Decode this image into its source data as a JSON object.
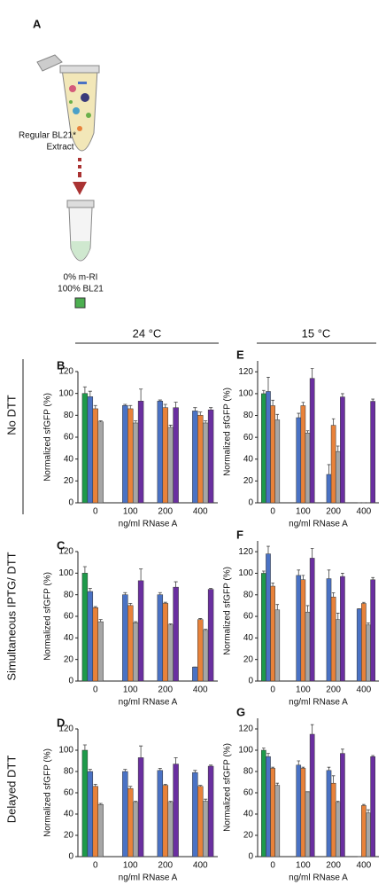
{
  "panel_a": {
    "label": "A",
    "extract_label": [
      "Regular BL21*",
      "Extract"
    ],
    "composition": [
      "0% m-RI",
      "100% BL21"
    ]
  },
  "column_headers": [
    "24 °C",
    "15 °C"
  ],
  "row_labels": [
    "No DTT",
    "Simultaneous IPTG/ DTT",
    "Delayed DTT"
  ],
  "chart_data": [
    {
      "type": "bar",
      "panel": "B",
      "y_label": "Normalized sfGFP (%)",
      "x_label": "ng/ml RNase A",
      "categories": [
        "0",
        "100",
        "200",
        "400"
      ],
      "ylim": [
        0,
        120
      ],
      "yticks": [
        0,
        20,
        40,
        60,
        80,
        100,
        120
      ],
      "series": [
        {
          "color": "#1e9a4a",
          "values": [
            100,
            null,
            null,
            null
          ],
          "errors": [
            6,
            null,
            null,
            null
          ]
        },
        {
          "color": "#4a72c4",
          "values": [
            97,
            89,
            93,
            84
          ],
          "errors": [
            5,
            1,
            1,
            3
          ]
        },
        {
          "color": "#e8823a",
          "values": [
            86,
            86,
            87,
            80
          ],
          "errors": [
            3,
            3,
            3,
            3
          ]
        },
        {
          "color": "#a6a6a6",
          "values": [
            74,
            73,
            69,
            73
          ],
          "errors": [
            1,
            2,
            2,
            2
          ]
        },
        {
          "color": "#6a2fa0",
          "values": [
            null,
            93,
            87,
            85
          ],
          "errors": [
            null,
            11,
            5,
            2
          ]
        }
      ]
    },
    {
      "type": "bar",
      "panel": "C",
      "y_label": "Normalized sfGFP (%)",
      "x_label": "ng/ml RNase A",
      "categories": [
        "0",
        "100",
        "200",
        "400"
      ],
      "ylim": [
        0,
        120
      ],
      "yticks": [
        0,
        20,
        40,
        60,
        80,
        100,
        120
      ],
      "series": [
        {
          "color": "#1e9a4a",
          "values": [
            100,
            null,
            null,
            null
          ],
          "errors": [
            6,
            null,
            null,
            null
          ]
        },
        {
          "color": "#4a72c4",
          "values": [
            83,
            80,
            80,
            13
          ],
          "errors": [
            3,
            2,
            2,
            0
          ]
        },
        {
          "color": "#e8823a",
          "values": [
            68,
            70,
            72,
            57
          ],
          "errors": [
            1,
            2,
            1,
            1
          ]
        },
        {
          "color": "#a6a6a6",
          "values": [
            55,
            54,
            52,
            47
          ],
          "errors": [
            2,
            1,
            1,
            1
          ]
        },
        {
          "color": "#6a2fa0",
          "values": [
            null,
            93,
            87,
            85
          ],
          "errors": [
            null,
            11,
            5,
            1
          ]
        }
      ]
    },
    {
      "type": "bar",
      "panel": "D",
      "y_label": "Normalized sfGFP (%)",
      "x_label": "ng/ml RNase A",
      "categories": [
        "0",
        "100",
        "200",
        "400"
      ],
      "ylim": [
        0,
        120
      ],
      "yticks": [
        0,
        20,
        40,
        60,
        80,
        100,
        120
      ],
      "series": [
        {
          "color": "#1e9a4a",
          "values": [
            100,
            null,
            null,
            null
          ],
          "errors": [
            5,
            null,
            null,
            null
          ]
        },
        {
          "color": "#4a72c4",
          "values": [
            80,
            80,
            81,
            79
          ],
          "errors": [
            2,
            2,
            2,
            2
          ]
        },
        {
          "color": "#e8823a",
          "values": [
            66,
            64,
            67,
            66
          ],
          "errors": [
            2,
            2,
            1,
            1
          ]
        },
        {
          "color": "#a6a6a6",
          "values": [
            49,
            51,
            51,
            52
          ],
          "errors": [
            1,
            1,
            1,
            2
          ]
        },
        {
          "color": "#6a2fa0",
          "values": [
            null,
            93,
            87,
            85
          ],
          "errors": [
            null,
            11,
            6,
            1
          ]
        }
      ]
    },
    {
      "type": "bar",
      "panel": "E",
      "y_label": "Normalized sfGFP (%)",
      "x_label": "ng/ml RNase A",
      "categories": [
        "0",
        "100",
        "200",
        "400"
      ],
      "ylim": [
        0,
        130
      ],
      "yticks": [
        0,
        20,
        40,
        60,
        80,
        100,
        120
      ],
      "series": [
        {
          "color": "#1e9a4a",
          "values": [
            100,
            null,
            null,
            null
          ],
          "errors": [
            3,
            null,
            null,
            null
          ]
        },
        {
          "color": "#4a72c4",
          "values": [
            102,
            78,
            26,
            0
          ],
          "errors": [
            13,
            4,
            9,
            0
          ]
        },
        {
          "color": "#e8823a",
          "values": [
            89,
            89,
            71,
            0
          ],
          "errors": [
            5,
            3,
            6,
            0
          ]
        },
        {
          "color": "#a6a6a6",
          "values": [
            76,
            64,
            47,
            0
          ],
          "errors": [
            5,
            2,
            5,
            0
          ]
        },
        {
          "color": "#6a2fa0",
          "values": [
            null,
            114,
            97,
            93
          ],
          "errors": [
            null,
            9,
            3,
            2
          ]
        }
      ]
    },
    {
      "type": "bar",
      "panel": "F",
      "y_label": "Normalized sfGFP (%)",
      "x_label": "ng/ml RNase A",
      "categories": [
        "0",
        "100",
        "200",
        "400"
      ],
      "ylim": [
        0,
        130
      ],
      "yticks": [
        0,
        20,
        40,
        60,
        80,
        100,
        120
      ],
      "series": [
        {
          "color": "#1e9a4a",
          "values": [
            100,
            null,
            null,
            null
          ],
          "errors": [
            2,
            null,
            null,
            null
          ]
        },
        {
          "color": "#4a72c4",
          "values": [
            118,
            98,
            95,
            67
          ],
          "errors": [
            7,
            5,
            8,
            0
          ]
        },
        {
          "color": "#e8823a",
          "values": [
            88,
            94,
            78,
            72
          ],
          "errors": [
            3,
            4,
            4,
            1
          ]
        },
        {
          "color": "#a6a6a6",
          "values": [
            66,
            64,
            57,
            52
          ],
          "errors": [
            5,
            6,
            6,
            2
          ]
        },
        {
          "color": "#6a2fa0",
          "values": [
            null,
            114,
            97,
            94
          ],
          "errors": [
            null,
            9,
            3,
            2
          ]
        }
      ]
    },
    {
      "type": "bar",
      "panel": "G",
      "y_label": "Normalized sfGFP (%)",
      "x_label": "ng/ml RNase A",
      "categories": [
        "0",
        "100",
        "200",
        "400"
      ],
      "ylim": [
        0,
        130
      ],
      "yticks": [
        0,
        20,
        40,
        60,
        80,
        100,
        120
      ],
      "series": [
        {
          "color": "#1e9a4a",
          "values": [
            100,
            null,
            null,
            null
          ],
          "errors": [
            2,
            null,
            null,
            null
          ]
        },
        {
          "color": "#4a72c4",
          "values": [
            94,
            86,
            81,
            0
          ],
          "errors": [
            3,
            4,
            3,
            0
          ]
        },
        {
          "color": "#e8823a",
          "values": [
            83,
            83,
            69,
            48
          ],
          "errors": [
            1,
            1,
            7,
            1
          ]
        },
        {
          "color": "#a6a6a6",
          "values": [
            67,
            61,
            51,
            41
          ],
          "errors": [
            2,
            0,
            1,
            3
          ]
        },
        {
          "color": "#6a2fa0",
          "values": [
            null,
            115,
            97,
            94
          ],
          "errors": [
            null,
            9,
            4,
            1
          ]
        }
      ]
    }
  ]
}
